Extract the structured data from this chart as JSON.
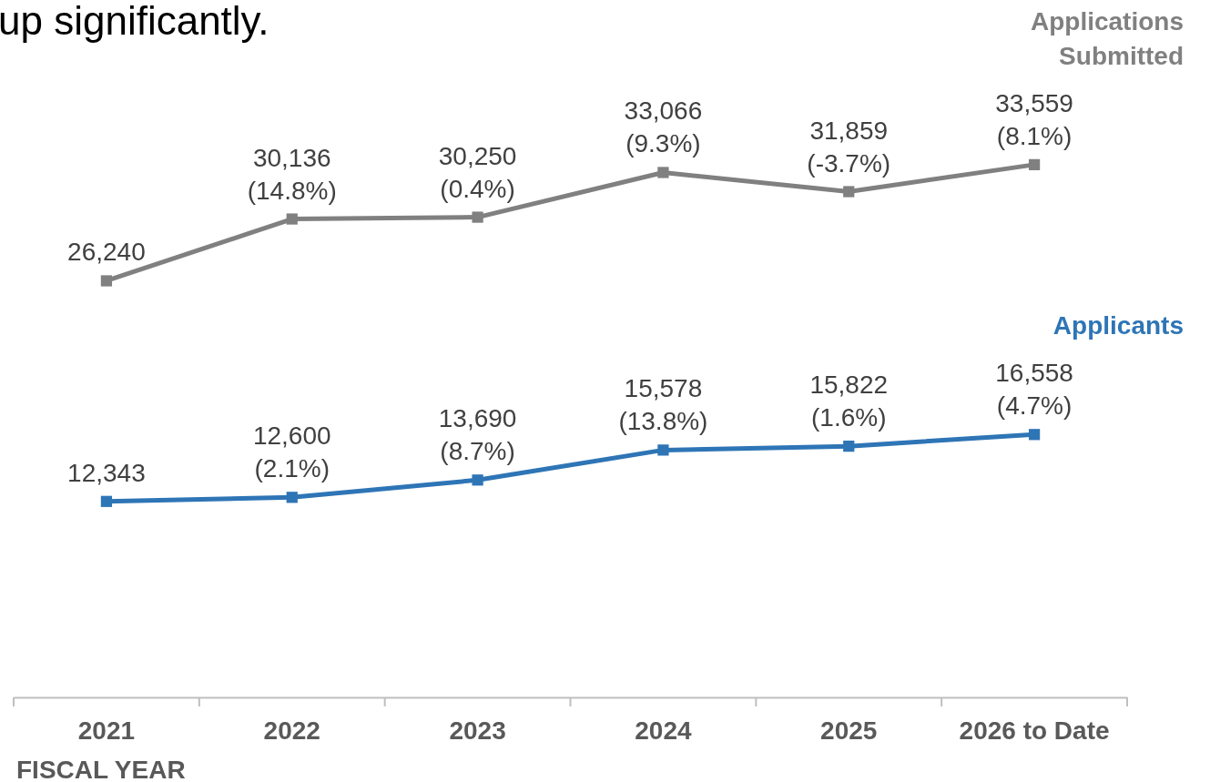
{
  "chart_data": {
    "type": "line",
    "title": "up significantly.",
    "xlabel": "FISCAL YEAR",
    "categories": [
      "2021",
      "2022",
      "2023",
      "2024",
      "2025",
      "2026 to Date"
    ],
    "series": [
      {
        "name": "Applications Submitted",
        "color": "#808080",
        "values": [
          26240,
          30136,
          30250,
          33066,
          31859,
          33559
        ],
        "value_labels": [
          "26,240",
          "30,136 (14.8%)",
          "30,250 (0.4%)",
          "33,066 (9.3%)",
          "31,859 (-3.7%)",
          "33,559 (8.1%)"
        ]
      },
      {
        "name": "Applicants",
        "color": "#2e75b6",
        "values": [
          12343,
          12600,
          13690,
          15578,
          15822,
          16558
        ],
        "value_labels": [
          "12,343",
          "12,600 (2.1%)",
          "13,690 (8.7%)",
          "15,578 (13.8%)",
          "15,822 (1.6%)",
          "16,558 (4.7%)"
        ]
      }
    ],
    "marker": "square",
    "line_style": "solid"
  }
}
